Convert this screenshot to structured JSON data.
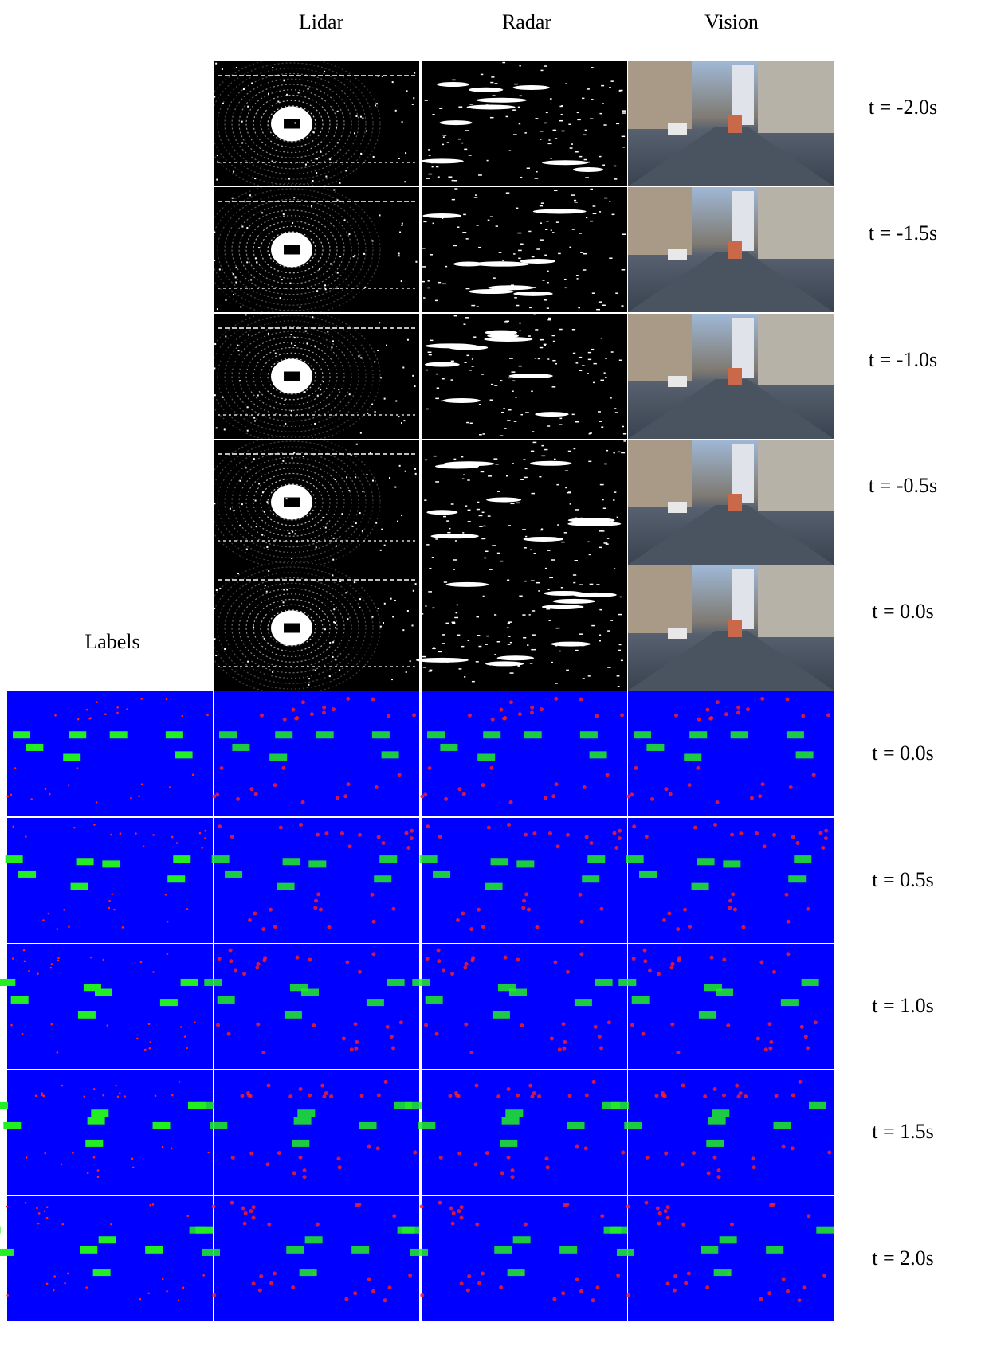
{
  "columns": [
    "Lidar",
    "Radar",
    "Vision"
  ],
  "labels_heading": "Labels",
  "input_rows": [
    "t = -2.0s",
    "t = -1.5s",
    "t = -1.0s",
    "t = -0.5s",
    "t = 0.0s"
  ],
  "output_rows": [
    "t = 0.0s",
    "t = 0.5s",
    "t = 1.0s",
    "t = 1.5s",
    "t = 2.0s"
  ]
}
